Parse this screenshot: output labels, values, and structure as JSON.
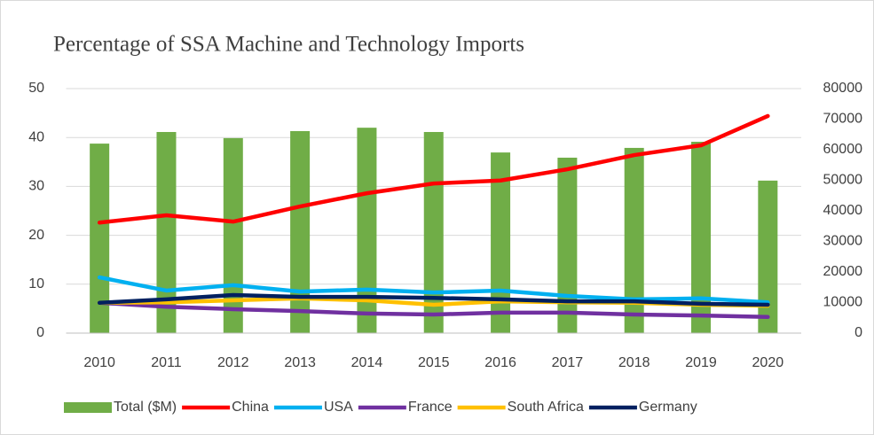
{
  "chart_data": {
    "type": "combo",
    "title": "Percentage of SSA Machine and Technology Imports",
    "categories": [
      "2010",
      "2011",
      "2012",
      "2013",
      "2014",
      "2015",
      "2016",
      "2017",
      "2018",
      "2019",
      "2020"
    ],
    "ylim": [
      0,
      50
    ],
    "yticks": [
      0,
      10,
      20,
      30,
      40,
      50
    ],
    "y2lim": [
      0,
      80000
    ],
    "y2ticks": [
      0,
      10000,
      20000,
      30000,
      40000,
      50000,
      60000,
      70000,
      80000
    ],
    "grid": true,
    "legend": "bottom",
    "series": [
      {
        "name": "Total ($M)",
        "type": "bar",
        "axis": "y2",
        "color": "#70ad47",
        "values": [
          62000,
          65800,
          63800,
          66100,
          67200,
          65800,
          59100,
          57400,
          60600,
          62600,
          49900
        ]
      },
      {
        "name": "China",
        "type": "line",
        "color": "#ff0000",
        "values": [
          22.6,
          24.1,
          22.8,
          25.9,
          28.6,
          30.6,
          31.2,
          33.5,
          36.4,
          38.4,
          44.4
        ]
      },
      {
        "name": "USA",
        "type": "line",
        "color": "#00b0f0",
        "values": [
          11.4,
          8.7,
          9.8,
          8.5,
          8.9,
          8.3,
          8.7,
          7.6,
          6.9,
          7.1,
          6.3
        ]
      },
      {
        "name": "France",
        "type": "line",
        "color": "#7030a0",
        "values": [
          6.2,
          5.4,
          4.9,
          4.5,
          4.0,
          3.8,
          4.2,
          4.2,
          3.8,
          3.6,
          3.3
        ]
      },
      {
        "name": "South Africa",
        "type": "line",
        "color": "#ffc000",
        "values": [
          6.2,
          6.3,
          6.7,
          7.1,
          6.7,
          5.8,
          6.5,
          6.3,
          6.2,
          5.8,
          5.6
        ]
      },
      {
        "name": "Germany",
        "type": "line",
        "color": "#002060",
        "values": [
          6.2,
          6.9,
          7.8,
          7.4,
          7.4,
          7.2,
          6.9,
          6.5,
          6.5,
          6.0,
          5.8
        ]
      }
    ]
  }
}
